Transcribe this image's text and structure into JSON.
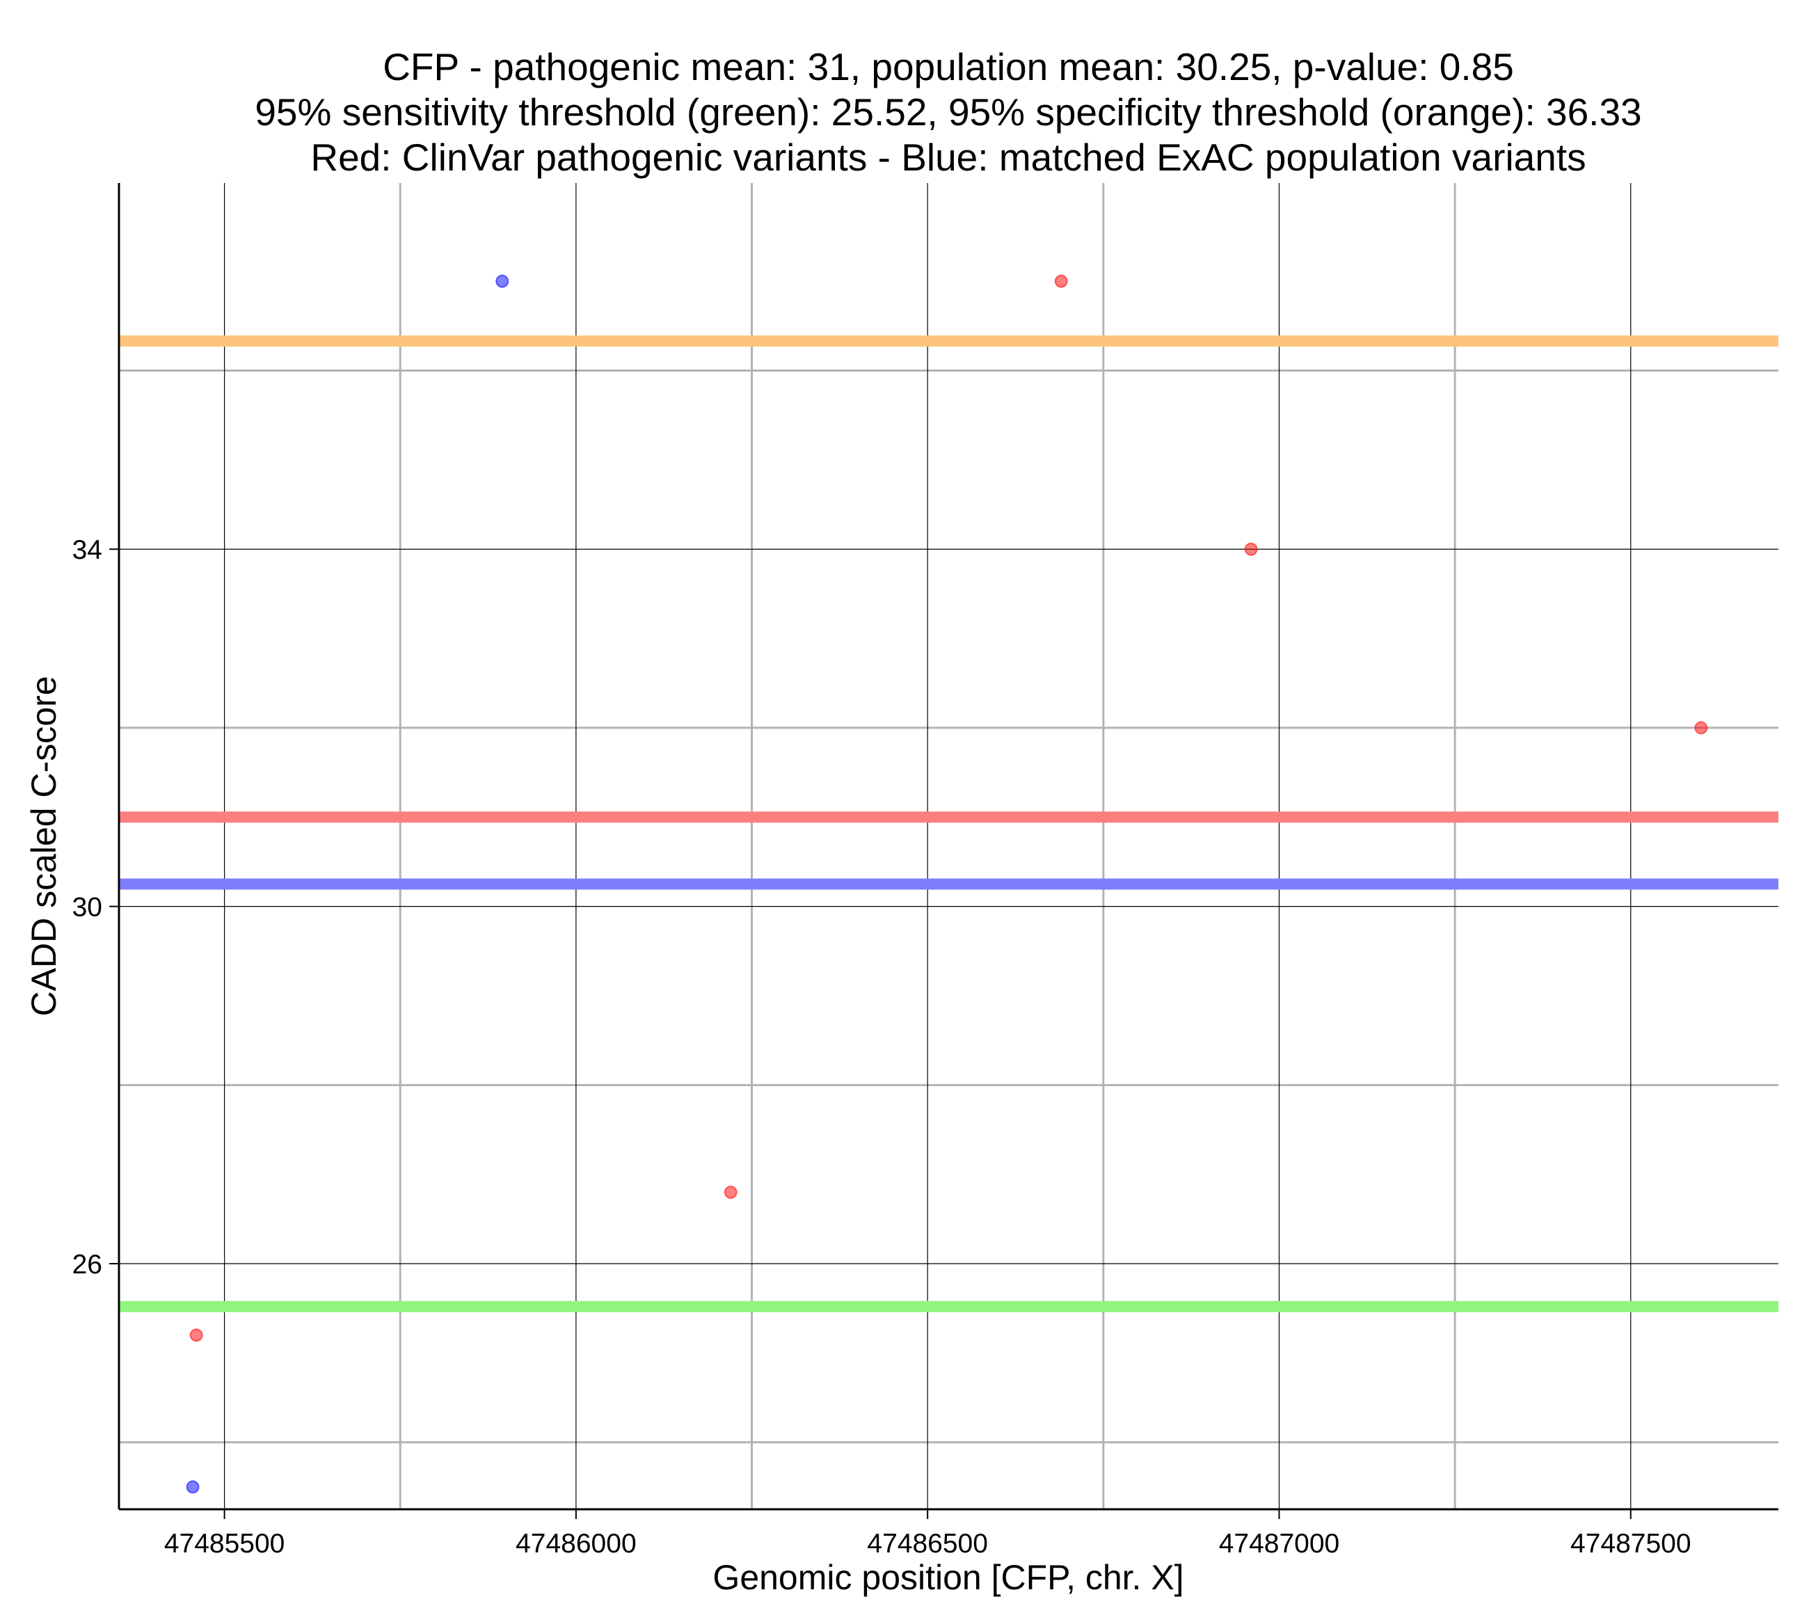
{
  "chart_data": {
    "type": "scatter",
    "title": [
      "CFP - pathogenic mean: 31, population mean: 30.25, p-value: 0.85",
      "95% sensitivity threshold (green): 25.52, 95% specificity threshold (orange): 36.33",
      "Red: ClinVar pathogenic variants - Blue: matched ExAC population variants"
    ],
    "xlabel": "Genomic position [CFP, chr. X]",
    "ylabel": "CADD scaled C-score",
    "xlim": [
      47485350,
      47487710
    ],
    "ylim": [
      23.25,
      38.1
    ],
    "x_ticks": [
      47485500,
      47486000,
      47486500,
      47487000,
      47487500
    ],
    "x_minor_grid": [
      47485750,
      47486250,
      47486750,
      47487250
    ],
    "y_ticks": [
      26,
      30,
      34
    ],
    "y_minor_grid": [
      24,
      28,
      32,
      36
    ],
    "grid": true,
    "series": [
      {
        "name": "ClinVar pathogenic variants",
        "color": "#ff0000",
        "points": [
          {
            "x": 47485460,
            "y": 25.2
          },
          {
            "x": 47486220,
            "y": 26.8
          },
          {
            "x": 47486690,
            "y": 37.0
          },
          {
            "x": 47486960,
            "y": 34.0
          },
          {
            "x": 47487600,
            "y": 32.0
          }
        ]
      },
      {
        "name": "matched ExAC population variants",
        "color": "#0000ff",
        "points": [
          {
            "x": 47485455,
            "y": 23.5
          },
          {
            "x": 47485895,
            "y": 37.0
          }
        ]
      }
    ],
    "reference_lines": [
      {
        "label": "95% specificity threshold (orange)",
        "y": 36.33,
        "color": "#fdc47e"
      },
      {
        "label": "pathogenic mean",
        "y": 31,
        "color": "#fb7f7f"
      },
      {
        "label": "population mean",
        "y": 30.25,
        "color": "#7f7ffb"
      },
      {
        "label": "95% sensitivity threshold (green)",
        "y": 25.52,
        "color": "#90f57e"
      }
    ]
  }
}
